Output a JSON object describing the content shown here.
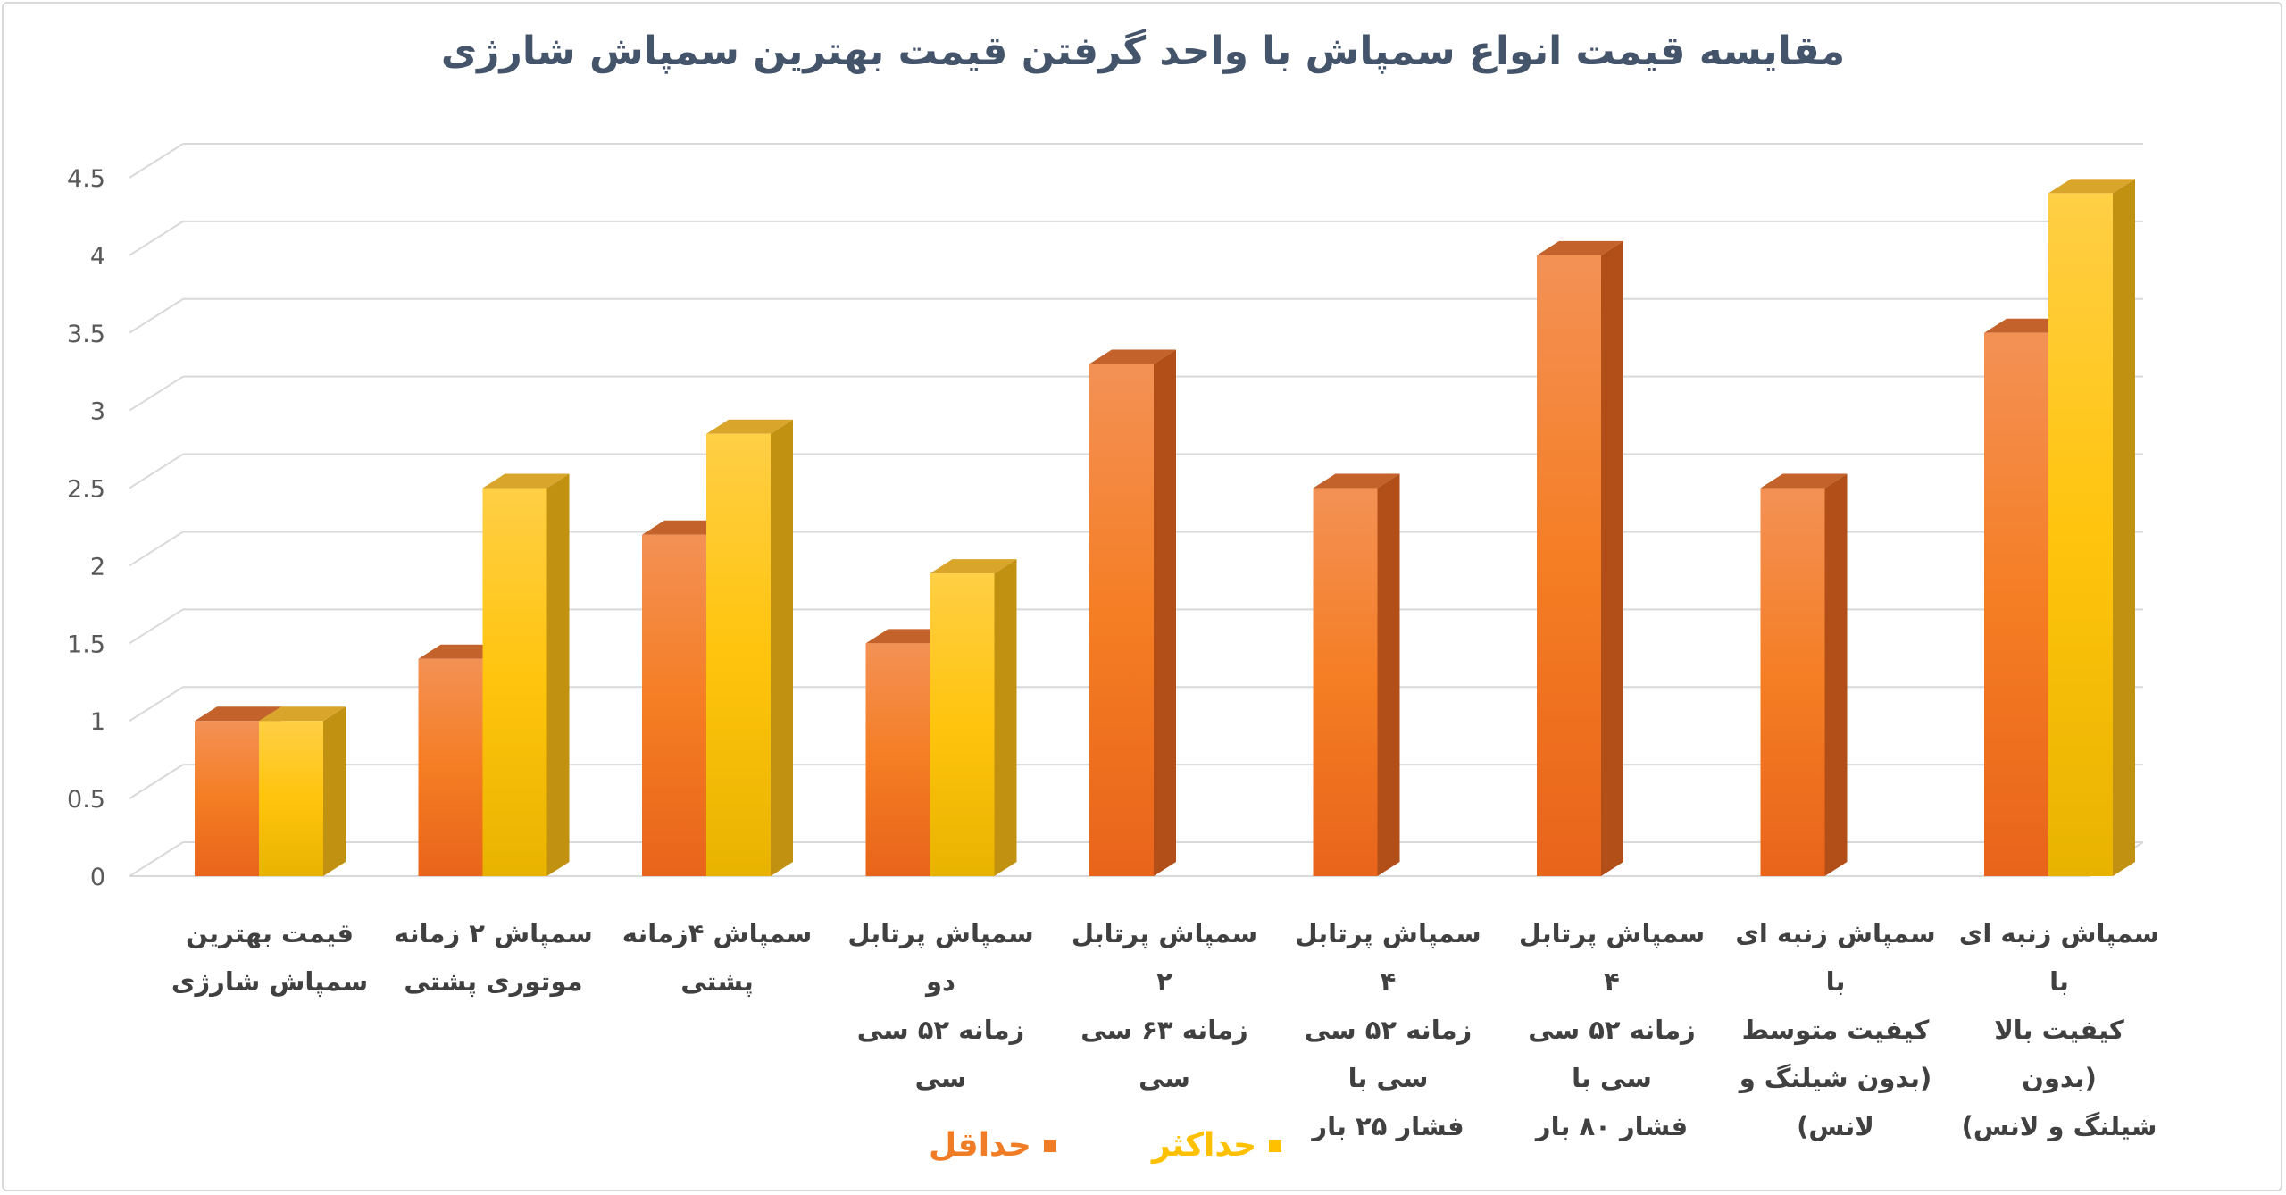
{
  "chart_data": {
    "type": "bar",
    "title": "مقایسه قیمت انواع سمپاش با واحد گرفتن قیمت بهترین سمپاش شارژی",
    "categories": [
      [
        "قیمت بهترین",
        "سمپاش شارژی"
      ],
      [
        "سمپاش ۲ زمانه",
        "موتوری پشتی"
      ],
      [
        "سمپاش ۴زمانه",
        "پشتی"
      ],
      [
        "سمپاش پرتابل دو",
        "زمانه ۵۲ سی سی"
      ],
      [
        "سمپاش پرتابل ۲",
        "زمانه ۶۳ سی سی"
      ],
      [
        "سمپاش پرتابل ۴",
        "زمانه ۵۲ سی سی با",
        "فشار ۲۵ بار"
      ],
      [
        "سمپاش پرتابل ۴",
        "زمانه ۵۲ سی سی با",
        "فشار ۸۰ بار"
      ],
      [
        "سمپاش زنبه ای با",
        "کیفیت متوسط",
        "(بدون شیلنگ و",
        "لانس)"
      ],
      [
        "سمپاش زنبه ای با",
        "کیفیت بالا (بدون",
        "شیلنگ و لانس)"
      ]
    ],
    "series": [
      {
        "name": "حداقل",
        "color": "#f07c25",
        "values": [
          1,
          1.4,
          2.2,
          1.5,
          3.3,
          2.5,
          4,
          2.5,
          3.5
        ]
      },
      {
        "name": "حداکثر",
        "color": "#ffc000",
        "values": [
          1,
          2.5,
          2.85,
          1.95,
          null,
          null,
          null,
          null,
          4.4
        ]
      }
    ],
    "yticks": [
      "0",
      "0.5",
      "1",
      "1.5",
      "2",
      "2.5",
      "3",
      "3.5",
      "4",
      "4.5"
    ],
    "ylim": [
      0,
      4.5
    ],
    "grid": true,
    "legend_position": "bottom"
  }
}
